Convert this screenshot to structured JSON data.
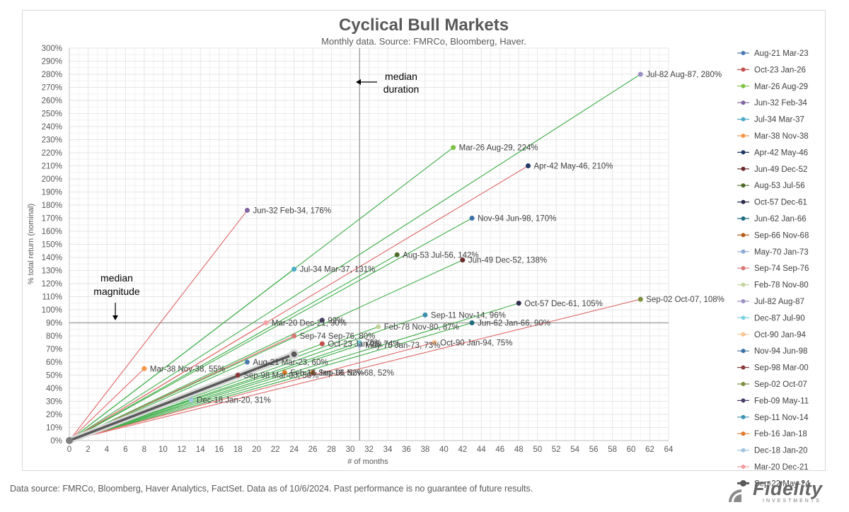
{
  "chart_data": {
    "type": "scatter",
    "title": "Cyclical Bull Markets",
    "subtitle": "Monthly data.  Source: FMRCo, Bloomberg, Haver.",
    "xlabel": "# of months",
    "ylabel": "% total return (nominal)",
    "xlim": [
      0,
      64
    ],
    "ylim": [
      0,
      300
    ],
    "x_ticks": [
      0,
      2,
      4,
      6,
      8,
      10,
      12,
      14,
      16,
      18,
      20,
      22,
      24,
      26,
      28,
      30,
      32,
      34,
      36,
      38,
      40,
      42,
      44,
      46,
      48,
      50,
      52,
      54,
      56,
      58,
      60,
      62,
      64
    ],
    "y_ticks": [
      "0%",
      "10%",
      "20%",
      "30%",
      "40%",
      "50%",
      "60%",
      "70%",
      "80%",
      "90%",
      "100%",
      "110%",
      "120%",
      "130%",
      "140%",
      "150%",
      "160%",
      "170%",
      "180%",
      "190%",
      "200%",
      "210%",
      "220%",
      "230%",
      "240%",
      "250%",
      "260%",
      "270%",
      "280%",
      "290%",
      "300%"
    ],
    "grid": true,
    "legend_position": "right",
    "median_duration": {
      "x": 31,
      "label_line1": "median",
      "label_line2": "duration"
    },
    "median_magnitude": {
      "y": 90,
      "label_line1": "median",
      "label_line2": "magnitude"
    },
    "series": [
      {
        "name": "Aug-21 Mar-23",
        "color": "#4a7bb0",
        "x": 19,
        "y": 60,
        "line": "#3fae49",
        "label": "Aug-21 Mar-23, 60%"
      },
      {
        "name": "Oct-23 Jan-26",
        "color": "#c0504d",
        "x": 27,
        "y": 74,
        "line": "#3fae49",
        "label": "Oct-23 Jan-26, 74%"
      },
      {
        "name": "Mar-26 Aug-29",
        "color": "#7dc142",
        "x": 41,
        "y": 224,
        "line": "#3fae49",
        "label": "Mar-26 Aug-29, 224%"
      },
      {
        "name": "Jun-32 Feb-34",
        "color": "#8064a2",
        "x": 19,
        "y": 176,
        "line": "#e06666",
        "label": "Jun-32 Feb-34, 176%"
      },
      {
        "name": "Jul-34 Mar-37",
        "color": "#4bacc6",
        "x": 24,
        "y": 131,
        "line": "#3fae49",
        "label": "Jul-34 Mar-37, 131%"
      },
      {
        "name": "Mar-38 Nov-38",
        "color": "#f79646",
        "x": 8,
        "y": 55,
        "line": "#e06666",
        "label": "Mar-38 Nov-38, 55%"
      },
      {
        "name": "Apr-42 May-46",
        "color": "#1f3864",
        "x": 49,
        "y": 210,
        "line": "#e06666",
        "label": "Apr-42 May-46, 210%"
      },
      {
        "name": "Jun-49 Dec-52",
        "color": "#6b2a2a",
        "x": 42,
        "y": 138,
        "line": "#3fae49",
        "label": "Jun-49 Dec-52, 138%"
      },
      {
        "name": "Aug-53 Jul-56",
        "color": "#4e6b2a",
        "x": 35,
        "y": 142,
        "line": "#3fae49",
        "label": "Aug-53 Jul-56, 142%"
      },
      {
        "name": "Oct-57 Dec-61",
        "color": "#2d2d4d",
        "x": 48,
        "y": 105,
        "line": "#3fae49",
        "label": "Oct-57 Dec-61, 105%"
      },
      {
        "name": "Jun-62 Jan-66",
        "color": "#1f6b80",
        "x": 43,
        "y": 90,
        "line": "#3fae49",
        "label": "Jun-62 Jan-66, 90%"
      },
      {
        "name": "Sep-66 Nov-68",
        "color": "#b85c1a",
        "x": 26,
        "y": 52,
        "line": "#3fae49",
        "label": "Sep-66 Nov-68, 52%"
      },
      {
        "name": "May-70 Jan-73",
        "color": "#8fa8d6",
        "x": 31,
        "y": 73,
        "line": "#3fae49",
        "label": "May-70 Jan-73, 73%"
      },
      {
        "name": "Sep-74 Sep-76",
        "color": "#d77777",
        "x": 24,
        "y": 80,
        "line": "#e06666",
        "label": "Sep-74 Sep-76, 80%"
      },
      {
        "name": "Feb-78 Nov-80",
        "color": "#c3d69b",
        "x": 33,
        "y": 87,
        "line": "#3fae49",
        "label": "Feb-78 Nov-80, 87%"
      },
      {
        "name": "Jul-82 Aug-87",
        "color": "#9c8fc4",
        "x": 61,
        "y": 280,
        "line": "#3fae49",
        "label": "Jul-82 Aug-87, 280%"
      },
      {
        "name": "Dec-87 Jul-90",
        "color": "#7fd0e0",
        "x": 31,
        "y": 75,
        "line": "#3fae49",
        "label": "75%"
      },
      {
        "name": "Oct-90 Jan-94",
        "color": "#fac090",
        "x": 39,
        "y": 75,
        "line": "#e06666",
        "label": "Oct-90 Jan-94, 75%"
      },
      {
        "name": "Nov-94 Jun-98",
        "color": "#3a6ea5",
        "x": 43,
        "y": 170,
        "line": "#3fae49",
        "label": "Nov-94 Jun-98, 170%"
      },
      {
        "name": "Sep-98 Mar-00",
        "color": "#8b3a3a",
        "x": 18,
        "y": 50,
        "line": "#3fae49",
        "label": "Sep-98 Mar-00, 50%"
      },
      {
        "name": "Sep-02 Oct-07",
        "color": "#7a8f3a",
        "x": 61,
        "y": 108,
        "line": "#e06666",
        "label": "Sep-02 Oct-07, 108%"
      },
      {
        "name": "Feb-09 May-11",
        "color": "#4b3d6b",
        "x": 27,
        "y": 92,
        "line": "#3fae49",
        "label": "92%"
      },
      {
        "name": "Sep-11 Nov-14",
        "color": "#3b8fb0",
        "x": 38,
        "y": 96,
        "line": "#3fae49",
        "label": "Sep-11 Nov-14, 96%"
      },
      {
        "name": "Feb-16 Jan-18",
        "color": "#e07a2a",
        "x": 23,
        "y": 52,
        "line": "#3fae49",
        "label": "Feb-16 Jan-18, 52%"
      },
      {
        "name": "Dec-18 Jan-20",
        "color": "#9fc4e0",
        "x": 13,
        "y": 31,
        "line": "#3fae49",
        "label": "Dec-18 Jan-20, 31%"
      },
      {
        "name": "Mar-20 Dec-21",
        "color": "#f2a0a0",
        "x": 21,
        "y": 90,
        "line": "#e06666",
        "label": "Mar-20 Dec-21, 90%"
      },
      {
        "name": "Sep-22 May-24",
        "color": "#595959",
        "x": 24,
        "y": 66,
        "line": "#595959",
        "label": "",
        "highlight": true
      }
    ]
  },
  "footer": {
    "note": "Data source: FMRCo, Bloomberg, Haver Analytics, FactSet. Data as of 10/6/2024. Past performance is no guarantee of future results.",
    "brand": "Fidelity",
    "brand_sub": "INVESTMENTS"
  }
}
